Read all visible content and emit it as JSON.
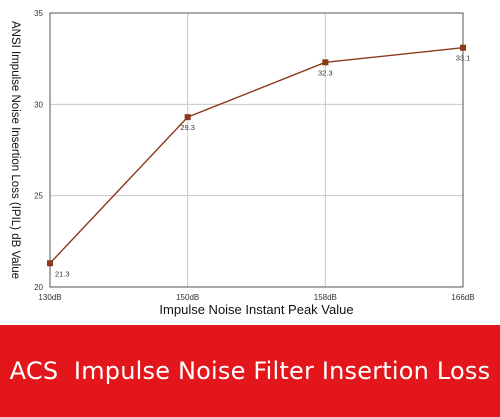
{
  "chart_data": {
    "type": "line",
    "categories": [
      "130dB",
      "150dB",
      "158dB",
      "166dB"
    ],
    "series": [
      {
        "values": [
          21.3,
          29.3,
          32.3,
          33.1
        ],
        "labels": [
          "21.3",
          "29.3",
          "32.3",
          "33.1"
        ]
      }
    ],
    "xlabel": "Impulse Noise Instant Peak Value",
    "ylabel": "ANSI Impulse Noise Insertion Loss (IPIL) dB Value",
    "ylim": [
      20,
      35
    ],
    "yticks": [
      "20",
      "25",
      "30",
      "35"
    ],
    "grid": true,
    "legend": "none",
    "colors": {
      "line": "#8b3a1a",
      "marker": "#8b3a1a",
      "grid": "#c8c8c8"
    }
  },
  "banner": {
    "title": "ACS  Impulse Noise Filter Insertion Loss",
    "background": "#e3161b"
  }
}
